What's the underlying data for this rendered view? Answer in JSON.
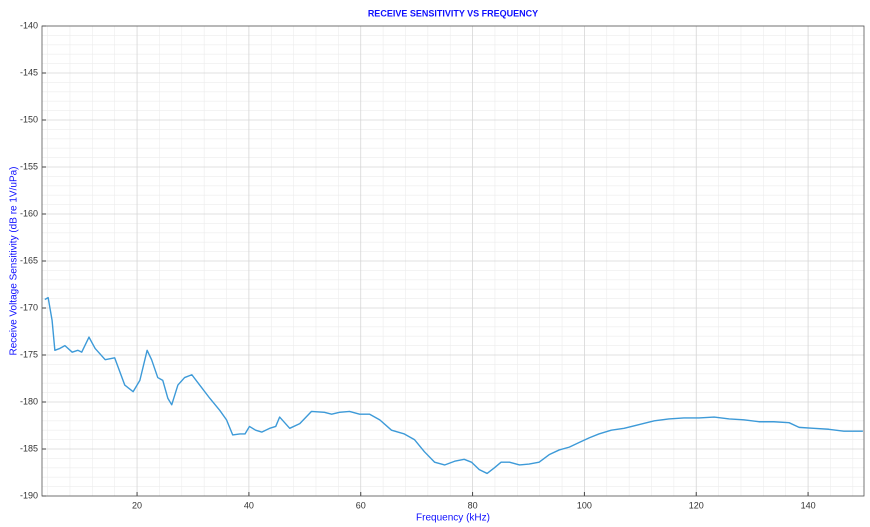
{
  "chart_data": {
    "type": "line",
    "title": "RECEIVE SENSITIVITY VS FREQUENCY",
    "x_label": "Frequency (kHz)",
    "y_label": "Receive Voltage Sensitivity (dB re 1V/uPa)",
    "xlim": [
      3,
      150
    ],
    "ylim": [
      -190,
      -140
    ],
    "xticks": [
      20,
      40,
      60,
      80,
      100,
      120,
      140
    ],
    "yticks": [
      -190,
      -185,
      -180,
      -175,
      -170,
      -165,
      -160,
      -155,
      -150,
      -145,
      -140
    ],
    "grid": true,
    "minor_divisions": 5,
    "x": [
      3.5,
      4.1,
      4.8,
      5.3,
      6.2,
      7.1,
      8.4,
      9.4,
      10.1,
      11.4,
      12.5,
      14.3,
      16.0,
      17.8,
      19.3,
      20.5,
      21.8,
      22.6,
      23.7,
      24.6,
      25.5,
      26.2,
      27.3,
      28.5,
      29.8,
      31.2,
      33.0,
      34.8,
      36.0,
      37.1,
      38.4,
      39.3,
      40.1,
      41.2,
      42.3,
      43.7,
      44.8,
      45.5,
      47.3,
      49.1,
      51.2,
      53.5,
      54.8,
      56.2,
      58.0,
      59.8,
      61.6,
      63.4,
      65.5,
      67.8,
      69.6,
      71.4,
      73.2,
      75.0,
      76.8,
      78.5,
      79.8,
      81.2,
      82.6,
      83.9,
      85.1,
      86.6,
      88.4,
      90.1,
      91.9,
      93.7,
      95.5,
      97.3,
      99.1,
      100.9,
      102.6,
      104.8,
      107.1,
      109.8,
      112.5,
      115.1,
      117.8,
      120.5,
      123.2,
      125.9,
      128.5,
      131.2,
      133.9,
      136.6,
      138.4,
      141.0,
      143.7,
      146.4,
      149.8
    ],
    "series": [
      {
        "color": "#3d9ad8",
        "values": [
          -169.1,
          -168.9,
          -171.3,
          -174.5,
          -174.3,
          -174.0,
          -174.7,
          -174.5,
          -174.7,
          -173.1,
          -174.3,
          -175.5,
          -175.3,
          -178.2,
          -178.9,
          -177.7,
          -174.5,
          -175.5,
          -177.4,
          -177.7,
          -179.6,
          -180.3,
          -178.2,
          -177.4,
          -177.1,
          -178.2,
          -179.6,
          -180.9,
          -181.9,
          -183.5,
          -183.4,
          -183.4,
          -182.6,
          -183.0,
          -183.2,
          -182.8,
          -182.6,
          -181.6,
          -182.8,
          -182.3,
          -181.0,
          -181.1,
          -181.3,
          -181.1,
          -181.0,
          -181.3,
          -181.3,
          -181.9,
          -183.0,
          -183.4,
          -184.0,
          -185.3,
          -186.4,
          -186.7,
          -186.3,
          -186.1,
          -186.4,
          -187.2,
          -187.6,
          -187.0,
          -186.4,
          -186.4,
          -186.7,
          -186.6,
          -186.4,
          -185.6,
          -185.1,
          -184.8,
          -184.3,
          -183.8,
          -183.4,
          -183.0,
          -182.8,
          -182.4,
          -182.0,
          -181.8,
          -181.7,
          -181.7,
          -181.6,
          -181.8,
          -181.9,
          -182.1,
          -182.1,
          -182.2,
          -182.7,
          -182.8,
          -182.9,
          -183.1,
          -183.1
        ]
      }
    ]
  }
}
